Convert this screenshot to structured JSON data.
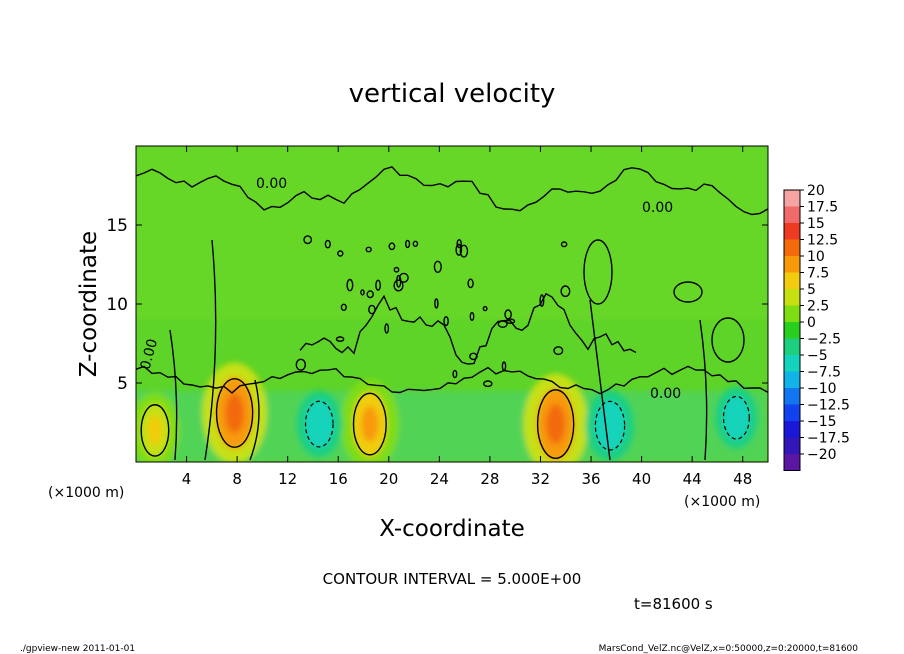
{
  "chart_data": {
    "type": "heatmap",
    "title": "vertical velocity",
    "xlabel": "X-coordinate",
    "ylabel": "Z-coordinate",
    "x_unit": "(×1000 m)",
    "z_unit": "(×1000 m)",
    "xlim": [
      0,
      50
    ],
    "ylim": [
      0,
      20
    ],
    "x_ticks": [
      4,
      8,
      12,
      16,
      20,
      24,
      28,
      32,
      36,
      40,
      44,
      48
    ],
    "y_ticks": [
      5,
      10,
      15
    ],
    "contour_interval_label": "CONTOUR INTERVAL = 5.000E+00",
    "contour_labels": [
      "0.00",
      "0.00",
      "0.00",
      "0.00"
    ],
    "time_label": "t=81600 s",
    "colorbar": {
      "levels": [
        "20",
        "17.5",
        "15",
        "12.5",
        "10",
        "7.5",
        "5",
        "2.5",
        "0",
        "−2.5",
        "−5",
        "−7.5",
        "−10",
        "−12.5",
        "−15",
        "−17.5",
        "−20"
      ],
      "colors": [
        "#f6a3a3",
        "#f06a6a",
        "#ee3a22",
        "#f26a0c",
        "#f79a0a",
        "#f2cc10",
        "#c6e012",
        "#7edc12",
        "#28cf1e",
        "#1fcf80",
        "#13d3bc",
        "#12b4e8",
        "#1276f0",
        "#1242f0",
        "#1a18d8",
        "#3216b8",
        "#5a16a0"
      ]
    },
    "updrafts": [
      {
        "x": 1.5,
        "z": 2.0,
        "w": 5
      },
      {
        "x": 7.8,
        "z": 3.1,
        "w": 10
      },
      {
        "x": 18.5,
        "z": 2.4,
        "w": 8
      },
      {
        "x": 33.2,
        "z": 2.4,
        "w": 10
      }
    ],
    "downdrafts": [
      {
        "x": 14.5,
        "z": 2.4,
        "w": -5
      },
      {
        "x": 37.5,
        "z": 2.3,
        "w": -6
      },
      {
        "x": 47.5,
        "z": 2.8,
        "w": -4
      }
    ]
  },
  "footer": {
    "left": "./gpview-new   2011-01-01",
    "right": "MarsCond_VelZ.nc@VelZ,x=0:50000,z=0:20000,t=81600"
  }
}
